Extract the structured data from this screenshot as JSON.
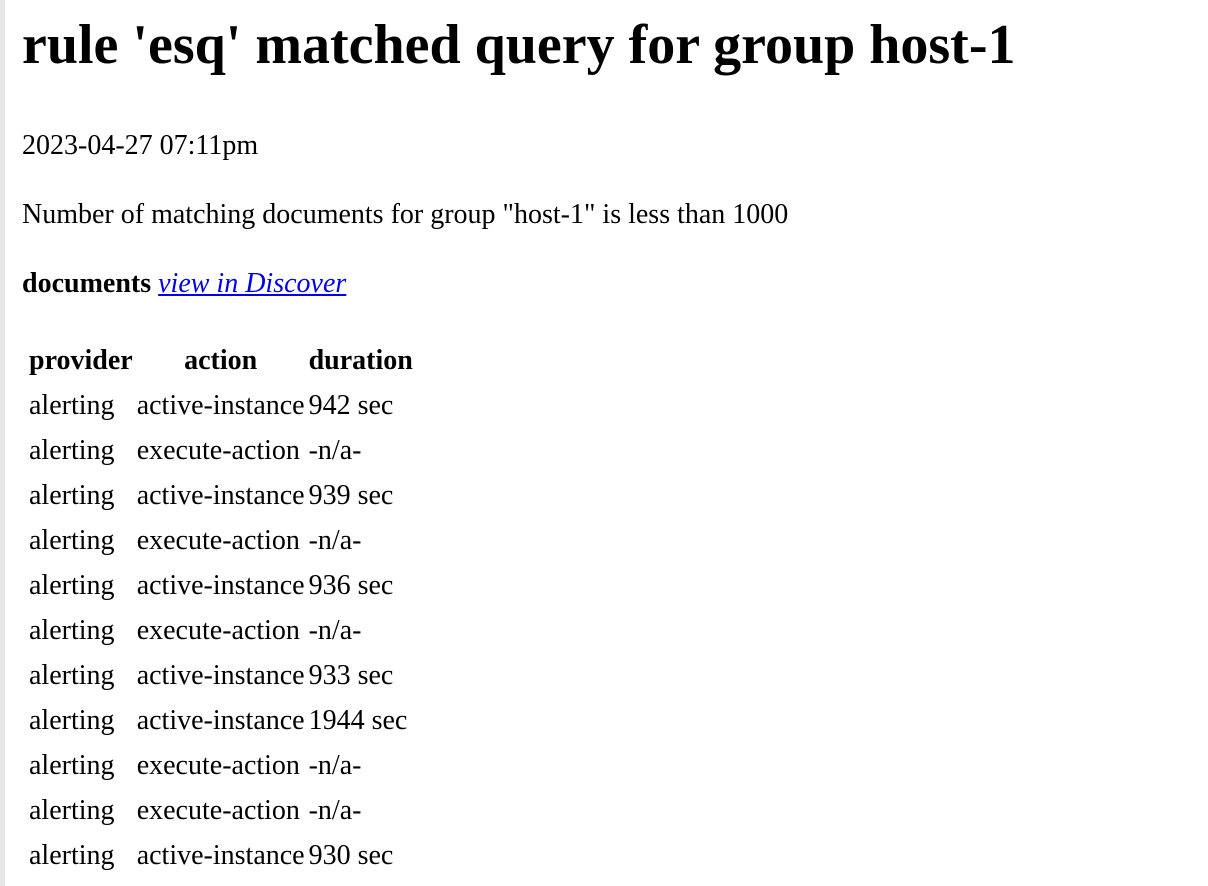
{
  "title": "rule 'esq' matched query for group host-1",
  "date": "2023-04-27 07:11pm",
  "description": "Number of matching documents for group \"host-1\" is less than 1000",
  "documents": {
    "label": "documents",
    "link": "view in Discover"
  },
  "table": {
    "headers": [
      "provider",
      "action",
      "duration"
    ],
    "rows": [
      [
        "alerting",
        "active-instance",
        "942 sec"
      ],
      [
        "alerting",
        "execute-action",
        "-n/a-"
      ],
      [
        "alerting",
        "active-instance",
        "939 sec"
      ],
      [
        "alerting",
        "execute-action",
        "-n/a-"
      ],
      [
        "alerting",
        "active-instance",
        "936 sec"
      ],
      [
        "alerting",
        "execute-action",
        "-n/a-"
      ],
      [
        "alerting",
        "active-instance",
        "933 sec"
      ],
      [
        "alerting",
        "active-instance",
        "1944 sec"
      ],
      [
        "alerting",
        "execute-action",
        "-n/a-"
      ],
      [
        "alerting",
        "execute-action",
        "-n/a-"
      ],
      [
        "alerting",
        "active-instance",
        "930 sec"
      ]
    ]
  }
}
